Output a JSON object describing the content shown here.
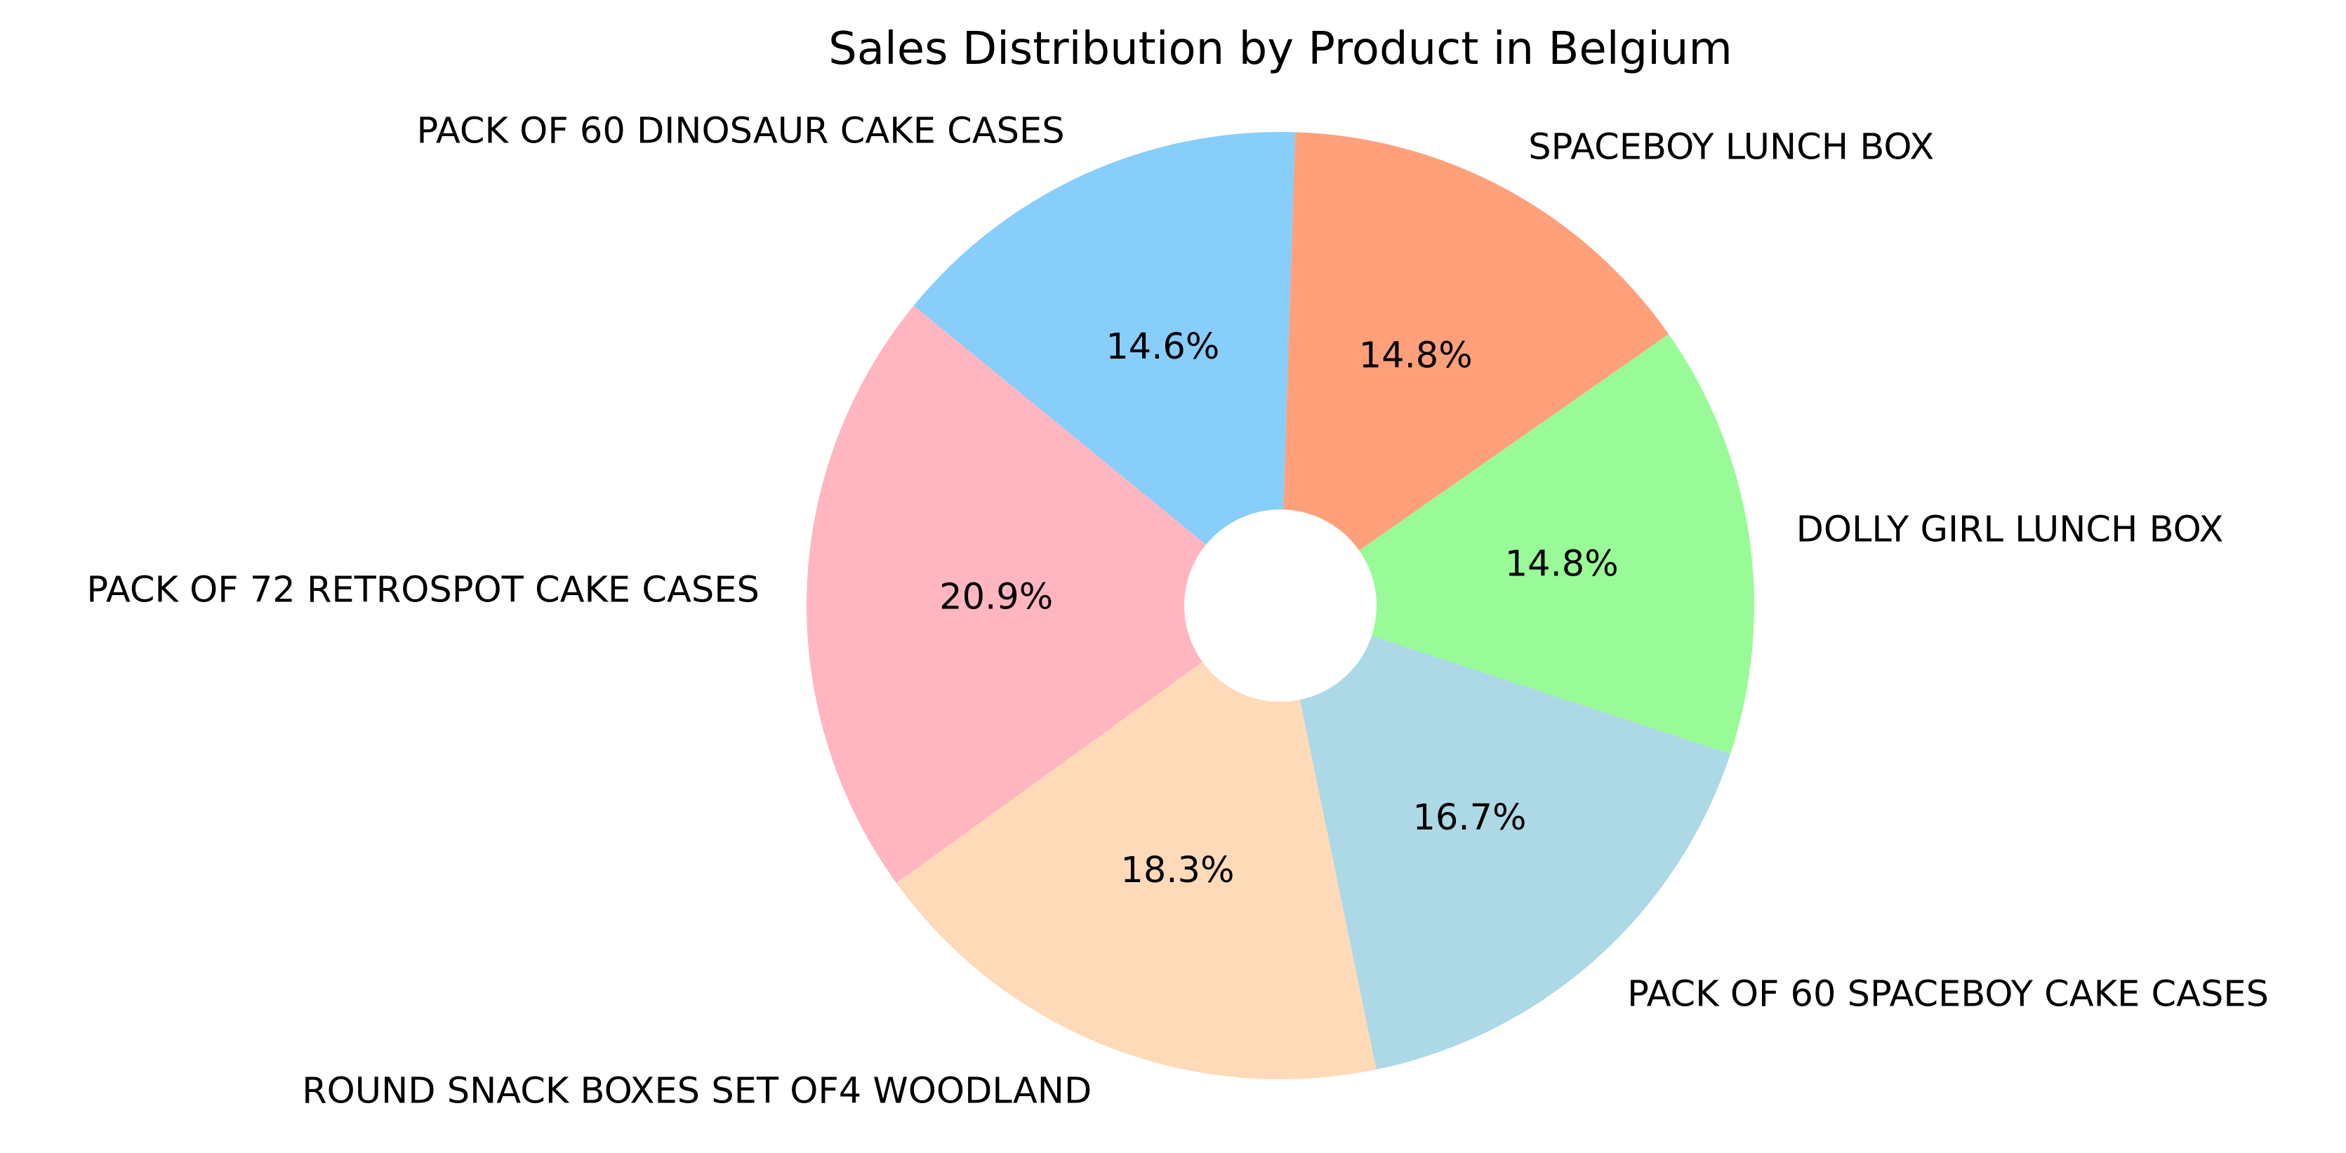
{
  "chart_data": {
    "type": "pie",
    "title": "Sales Distribution by Product in Belgium",
    "donut_hole": true,
    "start_angle_deg": 88.2,
    "direction": "counterclockwise",
    "slices": [
      {
        "label": "PACK OF 60 DINOSAUR CAKE CASES",
        "value": 14.6,
        "pct_label": "14.6%",
        "color": "#87cefa"
      },
      {
        "label": "PACK OF 72 RETROSPOT CAKE CASES",
        "value": 20.9,
        "pct_label": "20.9%",
        "color": "#ffb6c1"
      },
      {
        "label": "ROUND SNACK BOXES SET OF4 WOODLAND",
        "value": 18.3,
        "pct_label": "18.3%",
        "color": "#ffdab9"
      },
      {
        "label": "PACK OF 60 SPACEBOY CAKE CASES",
        "value": 16.7,
        "pct_label": "16.7%",
        "color": "#add8e6"
      },
      {
        "label": "DOLLY GIRL LUNCH BOX",
        "value": 14.8,
        "pct_label": "14.8%",
        "color": "#98fb98"
      },
      {
        "label": "SPACEBOY LUNCH BOX",
        "value": 14.8,
        "pct_label": "14.8%",
        "color": "#ffa07a"
      }
    ]
  }
}
